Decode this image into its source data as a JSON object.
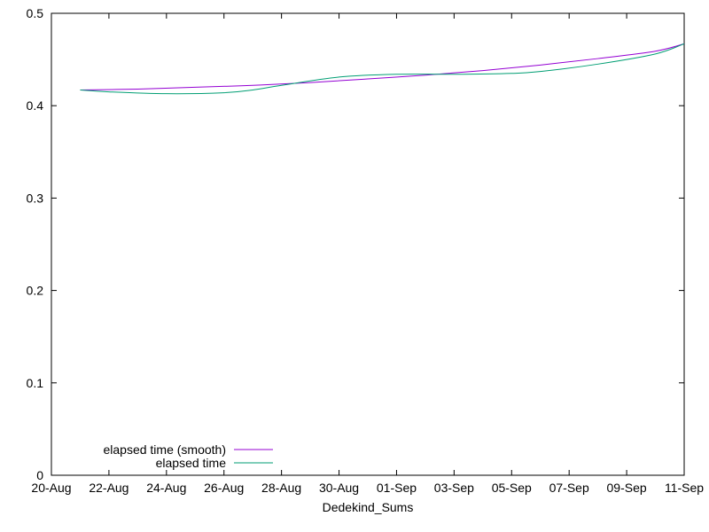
{
  "chart_data": {
    "type": "line",
    "title": "",
    "xlabel": "Dedekind_Sums",
    "ylabel": "",
    "ylim": [
      0,
      0.5
    ],
    "y_ticks": [
      "0",
      "0.1",
      "0.2",
      "0.3",
      "0.4",
      "0.5"
    ],
    "x_ticks": [
      "20-Aug",
      "22-Aug",
      "24-Aug",
      "26-Aug",
      "28-Aug",
      "30-Aug",
      "01-Sep",
      "03-Sep",
      "05-Sep",
      "07-Sep",
      "09-Sep",
      "11-Sep"
    ],
    "xlim": [
      "20-Aug",
      "11-Sep"
    ],
    "grid": false,
    "legend_position": "bottom-left",
    "series": [
      {
        "name": "elapsed time (smooth)",
        "color": "#9400d3",
        "x": [
          "21-Aug",
          "23-Aug",
          "25-Aug",
          "27-Aug",
          "29-Aug",
          "31-Aug",
          "02-Sep",
          "04-Sep",
          "06-Sep",
          "08-Sep",
          "10-Sep",
          "11-Sep"
        ],
        "values": [
          0.417,
          0.418,
          0.42,
          0.422,
          0.425,
          0.429,
          0.433,
          0.438,
          0.444,
          0.451,
          0.459,
          0.467
        ]
      },
      {
        "name": "elapsed time",
        "color": "#009e73",
        "x": [
          "21-Aug",
          "22-Aug",
          "24-Aug",
          "26-Aug",
          "27-Aug",
          "28-Aug",
          "30-Aug",
          "01-Sep",
          "03-Sep",
          "05-Sep",
          "06-Sep",
          "08-Sep",
          "10-Sep",
          "11-Sep"
        ],
        "values": [
          0.417,
          0.415,
          0.413,
          0.414,
          0.417,
          0.422,
          0.431,
          0.434,
          0.434,
          0.435,
          0.437,
          0.445,
          0.456,
          0.467
        ]
      }
    ]
  }
}
